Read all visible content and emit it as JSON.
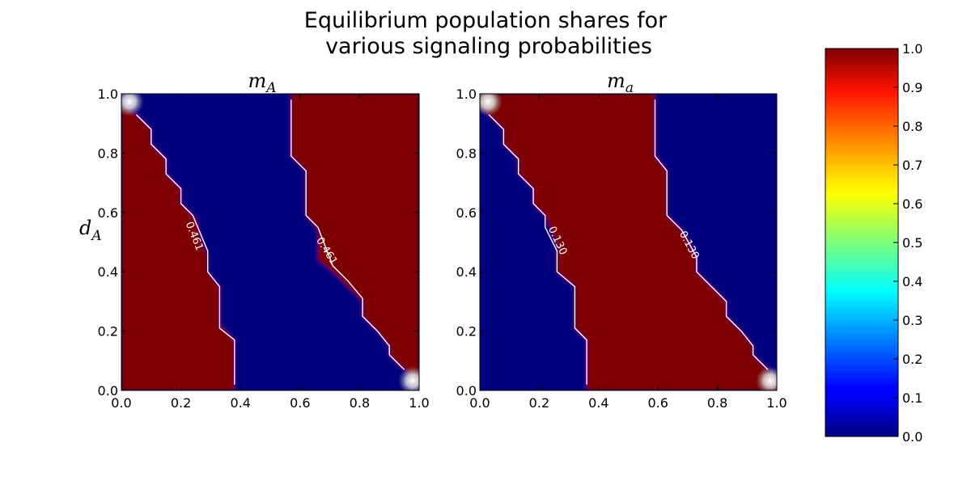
{
  "chart_data": {
    "title_line1": "Equilibrium population shares for",
    "title_line2": "various signaling probabilities",
    "ylabel_main": "d",
    "ylabel_sub": "A",
    "colorbar": {
      "colormap": "jet",
      "range": [
        0.0,
        1.0
      ],
      "ticks": [
        "0.0",
        "0.1",
        "0.2",
        "0.3",
        "0.4",
        "0.5",
        "0.6",
        "0.7",
        "0.8",
        "0.9",
        "1.0"
      ]
    },
    "panels": [
      {
        "type": "heatmap",
        "title_main": "m",
        "title_sub": "A",
        "xlim": [
          0.0,
          1.0
        ],
        "ylim": [
          0.0,
          1.0
        ],
        "xticks": [
          "0.0",
          "0.2",
          "0.4",
          "0.6",
          "0.8",
          "1.0"
        ],
        "yticks": [
          "0.0",
          "0.2",
          "0.4",
          "0.6",
          "0.8",
          "1.0"
        ],
        "regions": [
          {
            "value": 1.0,
            "color": "#7f0000",
            "polygon": [
              [
                0,
                0
              ],
              [
                0,
                0.96
              ],
              [
                0.05,
                0.93
              ],
              [
                0.1,
                0.88
              ],
              [
                0.1,
                0.83
              ],
              [
                0.15,
                0.78
              ],
              [
                0.15,
                0.73
              ],
              [
                0.2,
                0.68
              ],
              [
                0.2,
                0.63
              ],
              [
                0.25,
                0.58
              ],
              [
                0.27,
                0.5
              ],
              [
                0.29,
                0.45
              ],
              [
                0.29,
                0.4
              ],
              [
                0.33,
                0.35
              ],
              [
                0.33,
                0.22
              ],
              [
                0.38,
                0.17
              ],
              [
                0.38,
                0.0
              ]
            ]
          },
          {
            "value": 0.0,
            "color": "#00007f",
            "polygon": [
              [
                0.38,
                0
              ],
              [
                0.38,
                0.17
              ],
              [
                0.33,
                0.22
              ],
              [
                0.33,
                0.35
              ],
              [
                0.29,
                0.4
              ],
              [
                0.29,
                0.45
              ],
              [
                0.27,
                0.5
              ],
              [
                0.25,
                0.58
              ],
              [
                0.2,
                0.63
              ],
              [
                0.2,
                0.68
              ],
              [
                0.15,
                0.73
              ],
              [
                0.15,
                0.78
              ],
              [
                0.1,
                0.83
              ],
              [
                0.1,
                0.88
              ],
              [
                0.05,
                0.93
              ],
              [
                0,
                0.96
              ],
              [
                0,
                1
              ],
              [
                0.57,
                1
              ],
              [
                0.57,
                0.79
              ],
              [
                0.62,
                0.74
              ],
              [
                0.62,
                0.59
              ],
              [
                0.66,
                0.54
              ],
              [
                0.66,
                0.44
              ],
              [
                0.71,
                0.4
              ],
              [
                0.76,
                0.35
              ],
              [
                0.81,
                0.3
              ],
              [
                0.81,
                0.25
              ],
              [
                0.86,
                0.2
              ],
              [
                0.9,
                0.15
              ],
              [
                0.9,
                0.12
              ],
              [
                0.95,
                0.07
              ],
              [
                1,
                0.03
              ],
              [
                1,
                0
              ]
            ]
          },
          {
            "value": 1.0,
            "color": "#7f0000",
            "polygon": [
              [
                0.57,
                1
              ],
              [
                1,
                1
              ],
              [
                1,
                0.03
              ],
              [
                0.95,
                0.07
              ],
              [
                0.9,
                0.12
              ],
              [
                0.9,
                0.15
              ],
              [
                0.86,
                0.2
              ],
              [
                0.81,
                0.25
              ],
              [
                0.81,
                0.3
              ],
              [
                0.76,
                0.35
              ],
              [
                0.71,
                0.4
              ],
              [
                0.66,
                0.44
              ],
              [
                0.66,
                0.54
              ],
              [
                0.62,
                0.59
              ],
              [
                0.62,
                0.74
              ],
              [
                0.57,
                0.79
              ]
            ]
          }
        ],
        "contours": [
          {
            "label": "0.461",
            "label_at": [
              0.245,
              0.52
            ],
            "label_angle": 68,
            "points": [
              [
                0.05,
                0.93
              ],
              [
                0.1,
                0.88
              ],
              [
                0.1,
                0.83
              ],
              [
                0.15,
                0.78
              ],
              [
                0.15,
                0.73
              ],
              [
                0.2,
                0.68
              ],
              [
                0.2,
                0.63
              ],
              [
                0.24,
                0.59
              ],
              [
                0.29,
                0.47
              ],
              [
                0.29,
                0.4
              ],
              [
                0.33,
                0.35
              ],
              [
                0.33,
                0.21
              ],
              [
                0.38,
                0.17
              ],
              [
                0.38,
                0.02
              ]
            ]
          },
          {
            "label": "0.461",
            "label_at": [
              0.69,
              0.47
            ],
            "label_angle": 58,
            "points": [
              [
                0.57,
                0.98
              ],
              [
                0.57,
                0.79
              ],
              [
                0.62,
                0.74
              ],
              [
                0.62,
                0.59
              ],
              [
                0.66,
                0.55
              ],
              [
                0.71,
                0.42
              ],
              [
                0.76,
                0.37
              ],
              [
                0.81,
                0.31
              ],
              [
                0.81,
                0.25
              ],
              [
                0.86,
                0.2
              ],
              [
                0.9,
                0.15
              ],
              [
                0.9,
                0.12
              ],
              [
                0.95,
                0.07
              ]
            ]
          }
        ]
      },
      {
        "type": "heatmap",
        "title_main": "m",
        "title_sub": "a",
        "xlim": [
          0.0,
          1.0
        ],
        "ylim": [
          0.0,
          1.0
        ],
        "xticks": [
          "0.0",
          "0.2",
          "0.4",
          "0.6",
          "0.8",
          "1.0"
        ],
        "yticks": [
          "0.0",
          "0.2",
          "0.4",
          "0.6",
          "0.8",
          "1.0"
        ],
        "regions": [
          {
            "value": 0.0,
            "color": "#00007f",
            "polygon": [
              [
                0,
                0
              ],
              [
                0,
                0.96
              ],
              [
                0.03,
                0.93
              ],
              [
                0.08,
                0.88
              ],
              [
                0.08,
                0.83
              ],
              [
                0.13,
                0.78
              ],
              [
                0.13,
                0.73
              ],
              [
                0.18,
                0.68
              ],
              [
                0.18,
                0.63
              ],
              [
                0.22,
                0.59
              ],
              [
                0.26,
                0.49
              ],
              [
                0.26,
                0.4
              ],
              [
                0.32,
                0.35
              ],
              [
                0.32,
                0.21
              ],
              [
                0.36,
                0.17
              ],
              [
                0.36,
                0
              ]
            ]
          },
          {
            "value": 1.0,
            "color": "#7f0000",
            "polygon": [
              [
                0.36,
                0
              ],
              [
                0.36,
                0.17
              ],
              [
                0.32,
                0.21
              ],
              [
                0.32,
                0.35
              ],
              [
                0.26,
                0.4
              ],
              [
                0.26,
                0.49
              ],
              [
                0.22,
                0.59
              ],
              [
                0.18,
                0.63
              ],
              [
                0.18,
                0.68
              ],
              [
                0.13,
                0.73
              ],
              [
                0.13,
                0.78
              ],
              [
                0.08,
                0.83
              ],
              [
                0.08,
                0.88
              ],
              [
                0.03,
                0.93
              ],
              [
                0,
                0.96
              ],
              [
                0,
                1
              ],
              [
                0.59,
                1
              ],
              [
                0.59,
                0.79
              ],
              [
                0.63,
                0.74
              ],
              [
                0.63,
                0.59
              ],
              [
                0.68,
                0.54
              ],
              [
                0.73,
                0.45
              ],
              [
                0.73,
                0.4
              ],
              [
                0.78,
                0.35
              ],
              [
                0.83,
                0.3
              ],
              [
                0.83,
                0.25
              ],
              [
                0.88,
                0.2
              ],
              [
                0.92,
                0.15
              ],
              [
                0.92,
                0.12
              ],
              [
                0.97,
                0.07
              ],
              [
                1,
                0.03
              ],
              [
                1,
                0
              ]
            ]
          },
          {
            "value": 0.0,
            "color": "#00007f",
            "polygon": [
              [
                0.59,
                1
              ],
              [
                1,
                1
              ],
              [
                1,
                0.03
              ],
              [
                0.97,
                0.07
              ],
              [
                0.92,
                0.12
              ],
              [
                0.92,
                0.15
              ],
              [
                0.88,
                0.2
              ],
              [
                0.83,
                0.25
              ],
              [
                0.83,
                0.3
              ],
              [
                0.78,
                0.35
              ],
              [
                0.73,
                0.4
              ],
              [
                0.73,
                0.45
              ],
              [
                0.68,
                0.54
              ],
              [
                0.63,
                0.59
              ],
              [
                0.63,
                0.74
              ],
              [
                0.59,
                0.79
              ]
            ]
          }
        ],
        "contours": [
          {
            "label": "0.130",
            "label_at": [
              0.262,
              0.505
            ],
            "label_angle": 65,
            "points": [
              [
                0.03,
                0.93
              ],
              [
                0.08,
                0.88
              ],
              [
                0.08,
                0.83
              ],
              [
                0.13,
                0.78
              ],
              [
                0.13,
                0.73
              ],
              [
                0.18,
                0.68
              ],
              [
                0.18,
                0.63
              ],
              [
                0.22,
                0.59
              ],
              [
                0.22,
                0.55
              ],
              [
                0.26,
                0.47
              ],
              [
                0.26,
                0.4
              ],
              [
                0.32,
                0.35
              ],
              [
                0.32,
                0.21
              ],
              [
                0.36,
                0.17
              ],
              [
                0.36,
                0.02
              ]
            ]
          },
          {
            "label": "0.130",
            "label_at": [
              0.705,
              0.49
            ],
            "label_angle": 62,
            "points": [
              [
                0.59,
                0.98
              ],
              [
                0.59,
                0.79
              ],
              [
                0.63,
                0.74
              ],
              [
                0.63,
                0.59
              ],
              [
                0.68,
                0.54
              ],
              [
                0.73,
                0.45
              ],
              [
                0.73,
                0.4
              ],
              [
                0.78,
                0.35
              ],
              [
                0.83,
                0.3
              ],
              [
                0.83,
                0.25
              ],
              [
                0.88,
                0.2
              ],
              [
                0.92,
                0.15
              ],
              [
                0.92,
                0.12
              ],
              [
                0.97,
                0.07
              ]
            ]
          }
        ]
      }
    ]
  }
}
